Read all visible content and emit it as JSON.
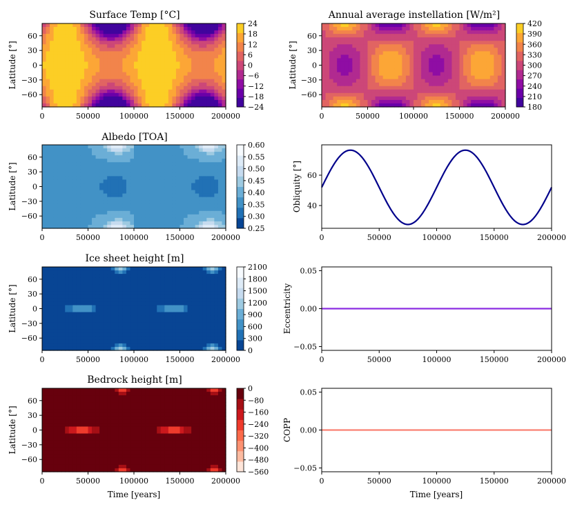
{
  "figure": {
    "x_ticks": [
      "0",
      "50000",
      "100000",
      "150000",
      "200000"
    ],
    "lat_ticks": [
      "60",
      "30",
      "0",
      "−30",
      "−60"
    ],
    "lat_label": "Latitude [°]",
    "time_label": "Time [years]"
  },
  "chart_data": [
    {
      "id": "surface_temp",
      "type": "heatmap",
      "title": "Surface Temp [°C]",
      "xlabel": "",
      "ylabel": "Latitude [°]",
      "xlim": [
        0,
        200000
      ],
      "ylim": [
        -85,
        85
      ],
      "colormap": "plasma",
      "colorbar_ticks": [
        "24",
        "18",
        "12",
        "6",
        "0",
        "−6",
        "−12",
        "−18",
        "−24"
      ],
      "vmin": -24,
      "vmax": 24,
      "colors": [
        "#0d0887",
        "#41049d",
        "#6a00a8",
        "#8f0da4",
        "#b12a90",
        "#cc4778",
        "#e16462",
        "#f2844b",
        "#fca636",
        "#fcce25",
        "#f0f921"
      ],
      "levels": 9
    },
    {
      "id": "insolation",
      "type": "heatmap",
      "title": "Annual average instellation [W/m²]",
      "ylabel": "Latitude [°]",
      "xlim": [
        0,
        200000
      ],
      "ylim": [
        -85,
        85
      ],
      "colormap": "plasma",
      "colorbar_ticks": [
        "420",
        "390",
        "360",
        "330",
        "300",
        "270",
        "240",
        "210",
        "180"
      ],
      "vmin": 180,
      "vmax": 420,
      "colors": [
        "#0d0887",
        "#41049d",
        "#6a00a8",
        "#8f0da4",
        "#b12a90",
        "#cc4778",
        "#e16462",
        "#f2844b",
        "#fca636",
        "#fcce25",
        "#f0f921"
      ],
      "levels": 9
    },
    {
      "id": "albedo",
      "type": "heatmap",
      "title": "Albedo [TOA]",
      "ylabel": "Latitude [°]",
      "xlim": [
        0,
        200000
      ],
      "ylim": [
        -85,
        85
      ],
      "colormap": "blues",
      "colorbar_ticks": [
        "0.60",
        "0.55",
        "0.50",
        "0.45",
        "0.40",
        "0.35",
        "0.30",
        "0.25"
      ],
      "vmin": 0.25,
      "vmax": 0.6,
      "colors": [
        "#084594",
        "#2171b5",
        "#4292c6",
        "#6baed6",
        "#9ecae1",
        "#c6dbef",
        "#deebf7",
        "#f7fbff"
      ],
      "levels": 8
    },
    {
      "id": "obliquity",
      "type": "line",
      "title": "",
      "ylabel": "Obliquity [°]",
      "xlim": [
        0,
        200000
      ],
      "ylim": [
        25,
        80
      ],
      "y_ticks": [
        "60",
        "40"
      ],
      "y_tick_values": [
        60,
        40
      ],
      "color": "#00008b",
      "series": [
        {
          "name": "obliquity",
          "mean": 52,
          "amplitude": 24.5,
          "period": 100000,
          "phase_x": 0
        }
      ]
    },
    {
      "id": "ice_height",
      "type": "heatmap",
      "title": "Ice sheet height [m]",
      "ylabel": "Latitude [°]",
      "xlim": [
        0,
        200000
      ],
      "ylim": [
        -85,
        85
      ],
      "colormap": "blues",
      "colorbar_ticks": [
        "2100",
        "1800",
        "1500",
        "1200",
        "900",
        "600",
        "300",
        "0"
      ],
      "vmin": 0,
      "vmax": 2100,
      "colors": [
        "#084594",
        "#2171b5",
        "#4292c6",
        "#6baed6",
        "#9ecae1",
        "#c6dbef",
        "#deebf7",
        "#f7fbff"
      ],
      "levels": 8
    },
    {
      "id": "eccentricity",
      "type": "line",
      "title": "",
      "ylabel": "Eccentricity",
      "xlim": [
        0,
        200000
      ],
      "ylim": [
        -0.055,
        0.055
      ],
      "y_ticks": [
        "0.05",
        "0.00",
        "−0.05"
      ],
      "y_tick_values": [
        0.05,
        0.0,
        -0.05
      ],
      "color": "#8a2be2",
      "series": [
        {
          "name": "eccentricity",
          "x": [
            0,
            200000
          ],
          "values": [
            0.0,
            0.0
          ]
        }
      ]
    },
    {
      "id": "bedrock_height",
      "type": "heatmap",
      "title": "Bedrock height [m]",
      "xlabel": "Time [years]",
      "ylabel": "Latitude [°]",
      "xlim": [
        0,
        200000
      ],
      "ylim": [
        -85,
        85
      ],
      "colormap": "reds_r",
      "colorbar_ticks": [
        "0",
        "−80",
        "−160",
        "−240",
        "−320",
        "−400",
        "−480",
        "−560"
      ],
      "vmin": -560,
      "vmax": 0,
      "colors": [
        "#fee5d9",
        "#fcbba1",
        "#fc9272",
        "#fb6a4a",
        "#ef3b2c",
        "#cb181d",
        "#a50f15",
        "#67000d"
      ],
      "levels": 8
    },
    {
      "id": "copp",
      "type": "line",
      "title": "",
      "xlabel": "Time [years]",
      "ylabel": "COPP",
      "xlim": [
        0,
        200000
      ],
      "ylim": [
        -0.055,
        0.055
      ],
      "y_ticks": [
        "0.05",
        "0.00",
        "−0.05"
      ],
      "y_tick_values": [
        0.05,
        0.0,
        -0.05
      ],
      "color": "#fa8072",
      "series": [
        {
          "name": "COPP",
          "x": [
            0,
            200000
          ],
          "values": [
            0.0,
            0.0
          ]
        }
      ]
    }
  ]
}
